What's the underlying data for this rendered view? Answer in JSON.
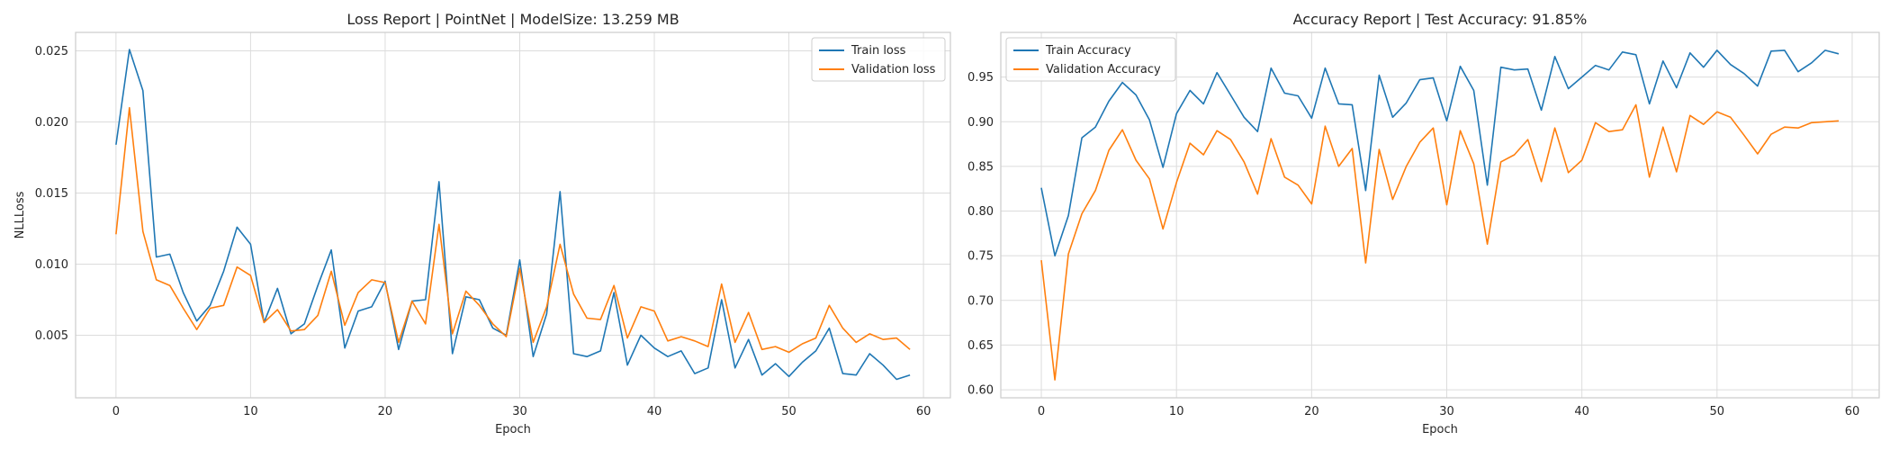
{
  "chart_data": [
    {
      "type": "line",
      "title": "Loss Report | PointNet | ModelSize: 13.259 MB",
      "xlabel": "Epoch",
      "ylabel": "NLLLoss",
      "xlim": [
        -3,
        62
      ],
      "ylim": [
        0.0006,
        0.0263
      ],
      "xticks": [
        0,
        10,
        20,
        30,
        40,
        50,
        60
      ],
      "yticks": [
        0.005,
        0.01,
        0.015,
        0.02,
        0.025
      ],
      "ytick_labels": [
        "0.005",
        "0.010",
        "0.015",
        "0.020",
        "0.025"
      ],
      "grid": true,
      "legend_position": "top-right",
      "series": [
        {
          "name": "Train loss",
          "color": "#1f77b4",
          "values": [
            0.0184,
            0.0251,
            0.0222,
            0.0105,
            0.0107,
            0.008,
            0.006,
            0.0071,
            0.0095,
            0.0126,
            0.0114,
            0.0059,
            0.0083,
            0.0051,
            0.0058,
            0.0085,
            0.011,
            0.0041,
            0.0067,
            0.007,
            0.0088,
            0.004,
            0.0074,
            0.0075,
            0.0158,
            0.0037,
            0.0077,
            0.0075,
            0.0055,
            0.005,
            0.0103,
            0.0035,
            0.0065,
            0.0151,
            0.0037,
            0.0035,
            0.0039,
            0.008,
            0.0029,
            0.005,
            0.0041,
            0.0035,
            0.0039,
            0.0023,
            0.0027,
            0.0075,
            0.0027,
            0.0047,
            0.0022,
            0.003,
            0.0021,
            0.0031,
            0.0039,
            0.0055,
            0.0023,
            0.0022,
            0.0037,
            0.0029,
            0.0019,
            0.0022
          ]
        },
        {
          "name": "Validation loss",
          "color": "#ff7f0e",
          "values": [
            0.0121,
            0.021,
            0.0123,
            0.0089,
            0.0085,
            0.0069,
            0.0054,
            0.0069,
            0.0071,
            0.0098,
            0.0092,
            0.0059,
            0.0068,
            0.0053,
            0.0054,
            0.0064,
            0.0095,
            0.0057,
            0.008,
            0.0089,
            0.0087,
            0.0045,
            0.0074,
            0.0058,
            0.0128,
            0.0051,
            0.0081,
            0.0071,
            0.0058,
            0.0049,
            0.0097,
            0.0045,
            0.007,
            0.0114,
            0.0079,
            0.0062,
            0.0061,
            0.0085,
            0.0048,
            0.007,
            0.0067,
            0.0046,
            0.0049,
            0.0046,
            0.0042,
            0.0086,
            0.0045,
            0.0066,
            0.004,
            0.0042,
            0.0038,
            0.0044,
            0.0048,
            0.0071,
            0.0055,
            0.0045,
            0.0051,
            0.0047,
            0.0048,
            0.004
          ]
        }
      ]
    },
    {
      "type": "line",
      "title": "Accuracy Report | Test Accuracy: 91.85%",
      "xlabel": "Epoch",
      "ylabel": "",
      "xlim": [
        -3,
        62
      ],
      "ylim": [
        0.591,
        1.0
      ],
      "xticks": [
        0,
        10,
        20,
        30,
        40,
        50,
        60
      ],
      "yticks": [
        0.6,
        0.65,
        0.7,
        0.75,
        0.8,
        0.85,
        0.9,
        0.95
      ],
      "ytick_labels": [
        "0.60",
        "0.65",
        "0.70",
        "0.75",
        "0.80",
        "0.85",
        "0.90",
        "0.95"
      ],
      "grid": true,
      "legend_position": "top-left",
      "series": [
        {
          "name": "Train Accuracy",
          "color": "#1f77b4",
          "values": [
            0.826,
            0.75,
            0.795,
            0.882,
            0.894,
            0.923,
            0.944,
            0.93,
            0.902,
            0.849,
            0.909,
            0.935,
            0.92,
            0.955,
            0.93,
            0.905,
            0.889,
            0.96,
            0.932,
            0.929,
            0.904,
            0.96,
            0.92,
            0.919,
            0.823,
            0.952,
            0.905,
            0.921,
            0.947,
            0.949,
            0.901,
            0.962,
            0.935,
            0.829,
            0.961,
            0.958,
            0.959,
            0.913,
            0.973,
            0.937,
            0.95,
            0.963,
            0.958,
            0.978,
            0.975,
            0.92,
            0.968,
            0.938,
            0.977,
            0.961,
            0.98,
            0.964,
            0.954,
            0.94,
            0.979,
            0.98,
            0.956,
            0.966,
            0.98,
            0.976
          ]
        },
        {
          "name": "Validation Accuracy",
          "color": "#ff7f0e",
          "values": [
            0.745,
            0.611,
            0.752,
            0.797,
            0.823,
            0.868,
            0.891,
            0.857,
            0.836,
            0.78,
            0.832,
            0.876,
            0.863,
            0.89,
            0.88,
            0.855,
            0.819,
            0.881,
            0.838,
            0.829,
            0.808,
            0.895,
            0.85,
            0.87,
            0.742,
            0.869,
            0.813,
            0.85,
            0.877,
            0.893,
            0.807,
            0.89,
            0.853,
            0.763,
            0.855,
            0.863,
            0.88,
            0.833,
            0.893,
            0.843,
            0.857,
            0.899,
            0.889,
            0.891,
            0.919,
            0.838,
            0.894,
            0.844,
            0.907,
            0.897,
            0.911,
            0.905,
            0.885,
            0.864,
            0.886,
            0.894,
            0.893,
            0.899,
            0.9,
            0.901
          ]
        }
      ]
    }
  ]
}
